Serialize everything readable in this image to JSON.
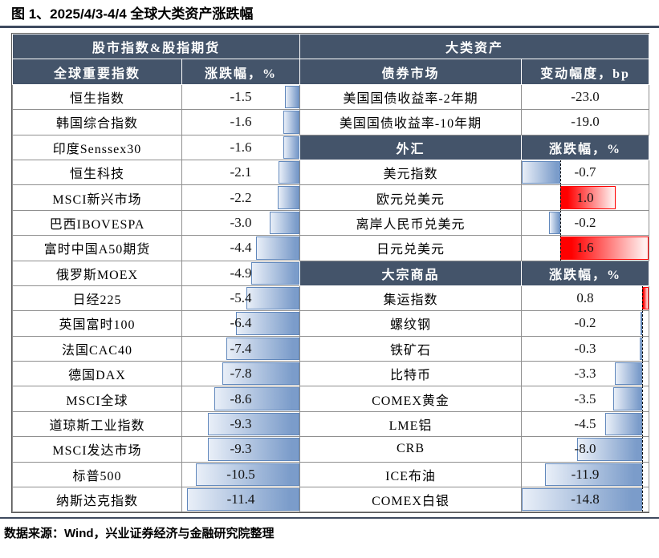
{
  "source": "数据来源：Wind，兴业证券经济与金融研究院整理",
  "colors": {
    "header_bg": "#44546A",
    "title_rule": "#3E4A5F",
    "grid_border": "#8F8F8F",
    "outer_border": "#595959",
    "bar_blue_light": "#E9EFF8",
    "bar_blue": "#7B9CCA",
    "bar_blue_border": "#6188BC",
    "bar_red": "#FF0000",
    "bar_red_light": "#FFEFEE",
    "zero_line": "#000000"
  },
  "chart_data": {
    "type": "table",
    "title": "图 1、2025/4/3-4/4 全球大类资产涨跌幅",
    "legend_position": "none",
    "bar_style": "excel-data-bars, negative=blue gradient anchored at zero axis, positive=red gradient, dashed black zero line",
    "left_table": {
      "header": "股市指数&股指期货",
      "name_column": "全球重要指数",
      "value_column": "涨跌幅，%",
      "unit": "%",
      "rows": [
        {
          "label": "恒生指数",
          "value": -1.5
        },
        {
          "label": "韩国综合指数",
          "value": -1.6
        },
        {
          "label": "印度Senssex30",
          "value": -1.6
        },
        {
          "label": "恒生科技",
          "value": -2.1
        },
        {
          "label": "MSCI新兴市场",
          "value": -2.2
        },
        {
          "label": "巴西IBOVESPA",
          "value": -3.0
        },
        {
          "label": "富时中国A50期货",
          "value": -4.4
        },
        {
          "label": "俄罗斯MOEX",
          "value": -4.9
        },
        {
          "label": "日经225",
          "value": -5.4
        },
        {
          "label": "英国富时100",
          "value": -6.4
        },
        {
          "label": "法国CAC40",
          "value": -7.4
        },
        {
          "label": "德国DAX",
          "value": -7.8
        },
        {
          "label": "MSCI全球",
          "value": -8.6
        },
        {
          "label": "道琼斯工业指数",
          "value": -9.3
        },
        {
          "label": "MSCI发达市场",
          "value": -9.3
        },
        {
          "label": "标普500",
          "value": -10.5
        },
        {
          "label": "纳斯达克指数",
          "value": -11.4
        }
      ]
    },
    "right_table": {
      "header": "大类资产",
      "sections": [
        {
          "name": "债券市场",
          "value_column": "变动幅度，bp",
          "unit": "bp",
          "bars": false,
          "rows": [
            {
              "label": "美国国债收益率-2年期",
              "value": -23.0
            },
            {
              "label": "美国国债收益率-10年期",
              "value": -19.0
            }
          ]
        },
        {
          "name": "外汇",
          "value_column": "涨跌幅，%",
          "unit": "%",
          "bars": true,
          "rows": [
            {
              "label": "美元指数",
              "value": -0.7
            },
            {
              "label": "欧元兑美元",
              "value": 1.0
            },
            {
              "label": "离岸人民币兑美元",
              "value": -0.2
            },
            {
              "label": "日元兑美元",
              "value": 1.6
            }
          ]
        },
        {
          "name": "大宗商品",
          "value_column": "涨跌幅，%",
          "unit": "%",
          "bars": true,
          "rows": [
            {
              "label": "集运指数",
              "value": 0.8
            },
            {
              "label": "螺纹钢",
              "value": -0.2
            },
            {
              "label": "铁矿石",
              "value": -0.3
            },
            {
              "label": "比特币",
              "value": -3.3
            },
            {
              "label": "COMEX黄金",
              "value": -3.5
            },
            {
              "label": "LME铝",
              "value": -4.5
            },
            {
              "label": "CRB",
              "value": -8.0
            },
            {
              "label": "ICE布油",
              "value": -11.9
            },
            {
              "label": "COMEX白银",
              "value": -14.8
            }
          ]
        }
      ]
    }
  }
}
